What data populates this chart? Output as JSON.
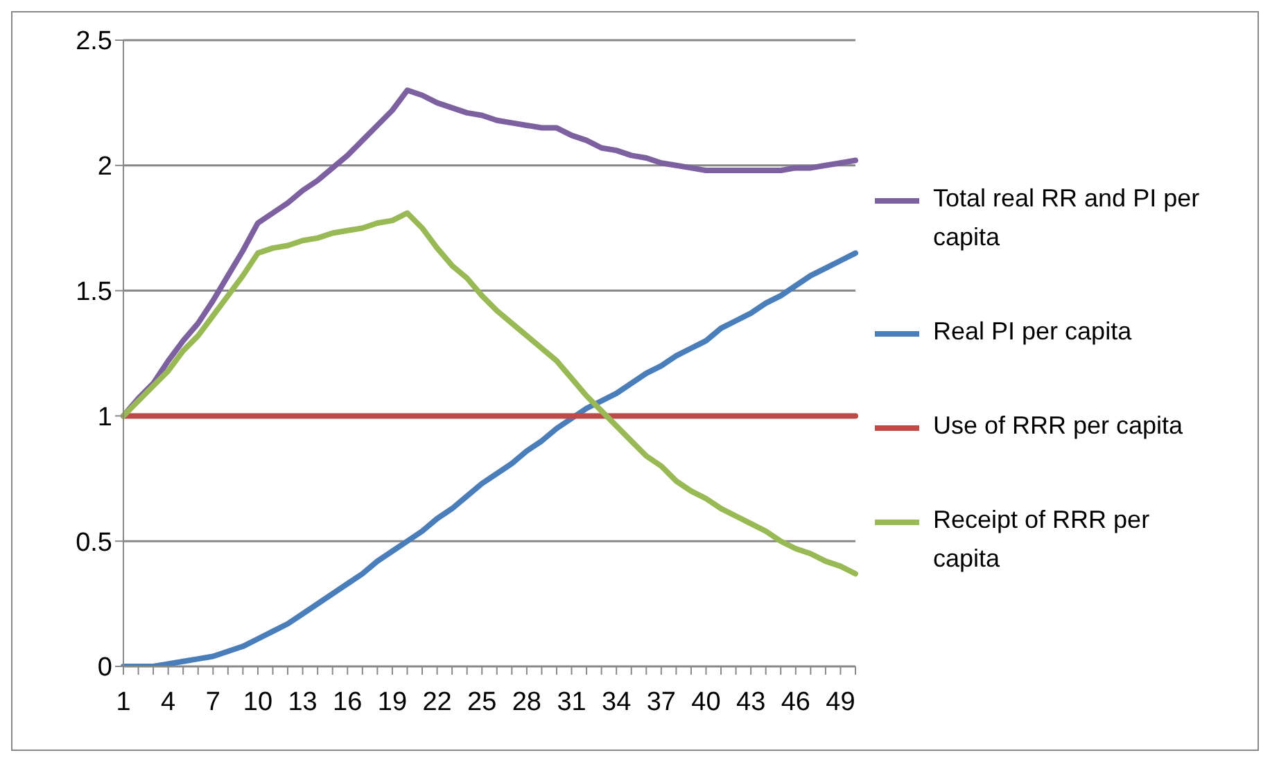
{
  "chart_data": {
    "type": "line",
    "categories": [
      "1",
      null,
      null,
      "4",
      null,
      null,
      "7",
      null,
      null,
      "10",
      null,
      null,
      "13",
      null,
      null,
      "16",
      null,
      null,
      "19",
      null,
      null,
      "22",
      null,
      null,
      "25",
      null,
      null,
      "28",
      null,
      null,
      "31",
      null,
      null,
      "34",
      null,
      null,
      "37",
      null,
      null,
      "40",
      null,
      null,
      "43",
      null,
      null,
      "46",
      null,
      null,
      "49",
      null
    ],
    "series": [
      {
        "name": "Total real RR and PI per capita",
        "color": "#7d60a0",
        "values": [
          1.0,
          1.07,
          1.13,
          1.22,
          1.3,
          1.37,
          1.46,
          1.56,
          1.66,
          1.77,
          1.81,
          1.85,
          1.9,
          1.94,
          1.99,
          2.04,
          2.1,
          2.16,
          2.22,
          2.3,
          2.28,
          2.25,
          2.23,
          2.21,
          2.2,
          2.18,
          2.17,
          2.16,
          2.15,
          2.15,
          2.12,
          2.1,
          2.07,
          2.06,
          2.04,
          2.03,
          2.01,
          2.0,
          1.99,
          1.98,
          1.98,
          1.98,
          1.98,
          1.98,
          1.98,
          1.99,
          1.99,
          2.0,
          2.01,
          2.02
        ]
      },
      {
        "name": "Real PI per capita",
        "color": "#4a7ebb",
        "values": [
          0,
          0,
          0,
          0.01,
          0.02,
          0.03,
          0.04,
          0.06,
          0.08,
          0.11,
          0.14,
          0.17,
          0.21,
          0.25,
          0.29,
          0.33,
          0.37,
          0.42,
          0.46,
          0.5,
          0.54,
          0.59,
          0.63,
          0.68,
          0.73,
          0.77,
          0.81,
          0.86,
          0.9,
          0.95,
          0.99,
          1.03,
          1.06,
          1.09,
          1.13,
          1.17,
          1.2,
          1.24,
          1.27,
          1.3,
          1.35,
          1.38,
          1.41,
          1.45,
          1.48,
          1.52,
          1.56,
          1.59,
          1.62,
          1.65
        ]
      },
      {
        "name": "Use of RRR per capita",
        "color": "#be4b48",
        "values": [
          1,
          1,
          1,
          1,
          1,
          1,
          1,
          1,
          1,
          1,
          1,
          1,
          1,
          1,
          1,
          1,
          1,
          1,
          1,
          1,
          1,
          1,
          1,
          1,
          1,
          1,
          1,
          1,
          1,
          1,
          1,
          1,
          1,
          1,
          1,
          1,
          1,
          1,
          1,
          1,
          1,
          1,
          1,
          1,
          1,
          1,
          1,
          1,
          1,
          1
        ]
      },
      {
        "name": "Receipt of RRR per capita",
        "color": "#98b954",
        "values": [
          1.0,
          1.06,
          1.12,
          1.18,
          1.26,
          1.32,
          1.4,
          1.48,
          1.56,
          1.65,
          1.67,
          1.68,
          1.7,
          1.71,
          1.73,
          1.74,
          1.75,
          1.77,
          1.78,
          1.81,
          1.75,
          1.67,
          1.6,
          1.55,
          1.48,
          1.42,
          1.37,
          1.32,
          1.27,
          1.22,
          1.15,
          1.08,
          1.02,
          0.96,
          0.9,
          0.84,
          0.8,
          0.74,
          0.7,
          0.67,
          0.63,
          0.6,
          0.57,
          0.54,
          0.5,
          0.47,
          0.45,
          0.42,
          0.4,
          0.37
        ]
      }
    ],
    "ylim": [
      0,
      2.5
    ],
    "yticks": [
      0,
      0.5,
      1,
      1.5,
      2,
      2.5
    ],
    "grid": "y",
    "legend": "right",
    "marker": "none",
    "line_style": "solid"
  }
}
